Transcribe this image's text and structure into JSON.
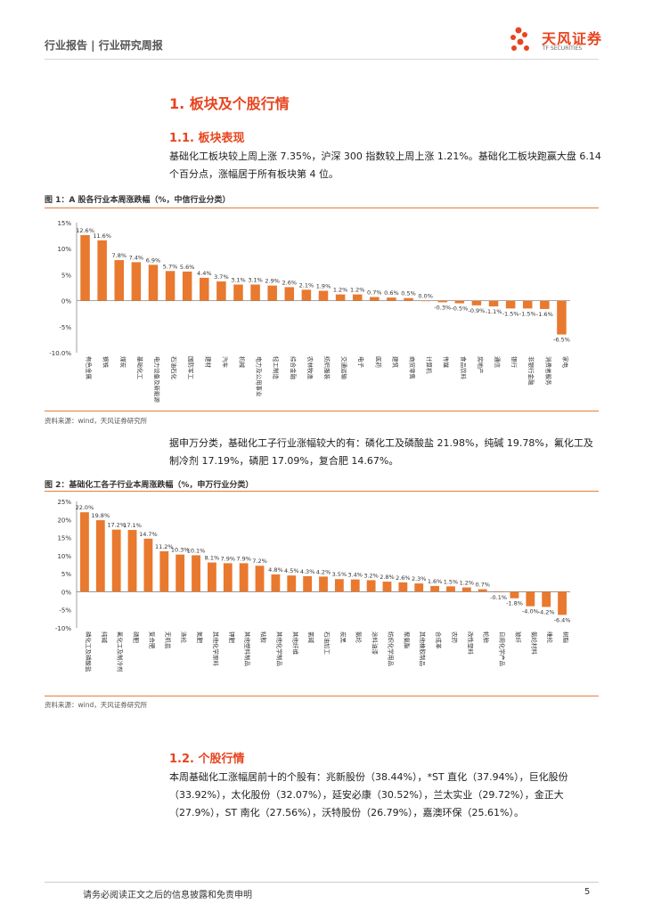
{
  "header": {
    "left": "行业报告 | 行业研究周报",
    "logo_cn": "天风证券",
    "logo_en": "TF SECURITIES"
  },
  "section1": {
    "title": "1. 板块及个股行情"
  },
  "section11": {
    "title": "1.1. 板块表现",
    "para": "基础化工板块较上周上涨 7.35%，沪深 300 指数较上周上涨 1.21%。基础化工板块跑赢大盘 6.14 个百分点，涨幅居于所有板块第 4 位。"
  },
  "fig1": {
    "title": "图 1：A 股各行业本周涨跌幅（%，中信行业分类）",
    "source": "资料来源：wind，天风证券研究所"
  },
  "para2": "据申万分类，基础化工子行业涨幅较大的有：磷化工及磷酸盐 21.98%，纯碱 19.78%，氟化工及制冷剂 17.19%，磷肥 17.09%，复合肥 14.67%。",
  "fig2": {
    "title": "图 2：基础化工各子行业本周涨跌幅（%，申万行业分类）",
    "source": "资料来源：wind，天风证券研究所"
  },
  "section12": {
    "title": "1.2. 个股行情",
    "para": "本周基础化工涨幅居前十的个股有：兆新股份（38.44%），*ST 直化（37.94%），巨化股份（33.92%），太化股份（32.07%），延安必康（30.52%），兰太实业（29.72%），金正大（27.9%），ST 南化（27.56%），沃特股份（26.79%），嘉澳环保（25.61%）。"
  },
  "footer": {
    "text": "请务必阅读正文之后的信息披露和免责申明",
    "page": "5"
  },
  "colors": {
    "bar": "#e8792f",
    "accent": "#e8441e"
  },
  "chart_data": [
    {
      "type": "bar",
      "title": "图 1：A 股各行业本周涨跌幅（%，中信行业分类）",
      "ylim": [
        -10,
        15
      ],
      "yticks": [
        "15%",
        "10%",
        "5%",
        "0%",
        "-5%",
        "-10.0%"
      ],
      "values": [
        12.6,
        11.6,
        7.8,
        7.4,
        6.9,
        5.7,
        5.6,
        4.4,
        3.7,
        3.1,
        3.1,
        2.9,
        2.6,
        2.1,
        1.9,
        1.2,
        1.2,
        0.7,
        0.6,
        0.5,
        0.0,
        -0.3,
        -0.5,
        -0.9,
        -1.1,
        -1.5,
        -1.5,
        -1.6,
        -6.5
      ],
      "labels": [
        "12.6%",
        "11.6%",
        "7.8%",
        "7.4%",
        "6.9%",
        "5.7%",
        "5.6%",
        "4.4%",
        "3.7%",
        "3.1%",
        "3.1%",
        "2.9%",
        "2.6%",
        "2.1%",
        "1.9%",
        "1.2%",
        "1.2%",
        "0.7%",
        "0.6%",
        "0.5%",
        "0.0%",
        "-0.3%",
        "-0.5%",
        "-0.9%",
        "-1.1%",
        "-1.5%",
        "-1.5%",
        "-1.6%",
        "-6.5%"
      ],
      "categories": [
        "有色金属",
        "钢铁",
        "煤炭",
        "基础化工",
        "电力设备及新能源",
        "石油石化",
        "国防军工",
        "建材",
        "汽车",
        "机械",
        "电力及公用事业",
        "轻工制造",
        "综合金融",
        "农林牧渔",
        "纺织服装",
        "交通运输",
        "电子",
        "医药",
        "建筑",
        "商贸零售",
        "计算机",
        "传媒",
        "食品饮料",
        "房地产",
        "通信",
        "银行",
        "非银行金融",
        "消费者服务",
        "家电"
      ]
    },
    {
      "type": "bar",
      "title": "图 2：基础化工各子行业本周涨跌幅（%，申万行业分类）",
      "ylim": [
        -10,
        25
      ],
      "yticks": [
        "25%",
        "20%",
        "15%",
        "10%",
        "5%",
        "0%",
        "-5%",
        "-10%"
      ],
      "values": [
        22.0,
        19.8,
        17.2,
        17.1,
        14.7,
        11.2,
        10.3,
        10.1,
        8.1,
        7.9,
        7.9,
        7.2,
        4.8,
        4.5,
        4.3,
        4.2,
        3.5,
        3.4,
        3.2,
        2.8,
        2.6,
        2.3,
        1.6,
        1.5,
        1.2,
        0.7,
        -0.1,
        -1.8,
        -4.0,
        -4.2,
        -6.4
      ],
      "labels": [
        "22.0%",
        "19.8%",
        "17.2%",
        "17.1%",
        "14.7%",
        "11.2%",
        "10.3%",
        "10.1%",
        "8.1%",
        "7.9%",
        "7.9%",
        "7.2%",
        "4.8%",
        "4.5%",
        "4.3%",
        "4.2%",
        "3.5%",
        "3.4%",
        "3.2%",
        "2.8%",
        "2.6%",
        "2.3%",
        "1.6%",
        "1.5%",
        "1.2%",
        "0.7%",
        "-0.1%",
        "-1.8%",
        "-4.0%",
        "-4.2%",
        "-6.4%"
      ],
      "categories": [
        "磷化工及磷酸盐",
        "纯碱",
        "氟化工及制冷剂",
        "磷肥",
        "复合肥",
        "无机盐",
        "涤纶",
        "氮肥",
        "其他化学原料",
        "钾肥",
        "其他塑料制品",
        "粘胶",
        "其他化学制品",
        "其他纤维",
        "氯碱",
        "石油加工",
        "炭黑",
        "氨纶",
        "涂料油漆",
        "纺织化学用品",
        "聚氨酯",
        "其他橡胶制品",
        "合成革",
        "农药",
        "改性塑料",
        "轮胎",
        "日用化学产品",
        "玻纤",
        "氨纶材料",
        "维纶",
        "树脂"
      ]
    }
  ]
}
